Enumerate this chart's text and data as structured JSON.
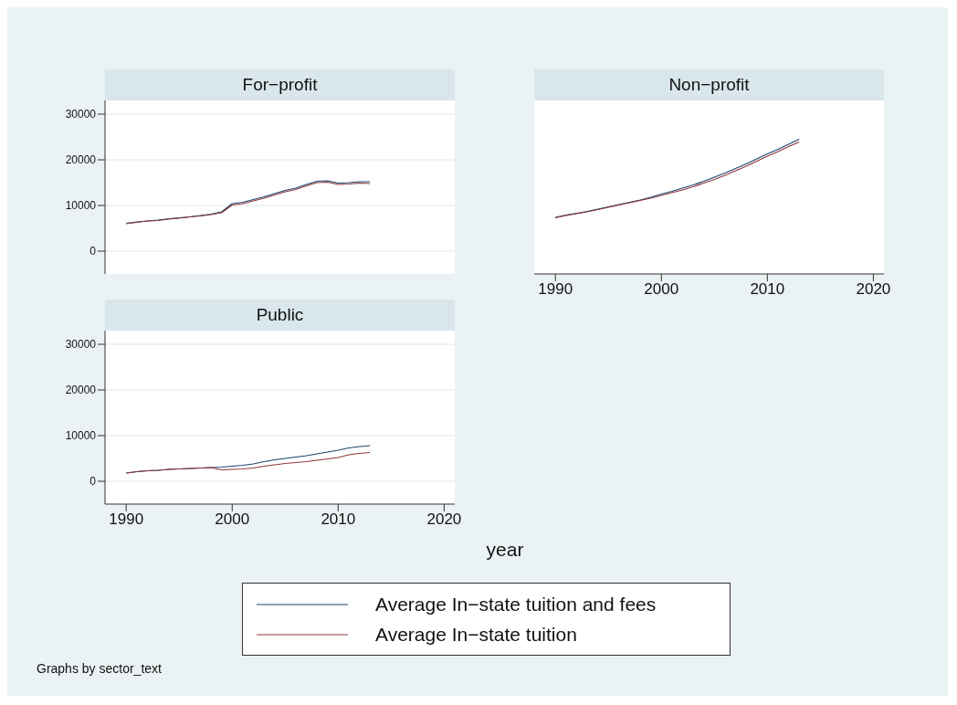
{
  "chart_data": [
    {
      "type": "line",
      "title": "For−profit",
      "x": [
        1990,
        1991,
        1992,
        1993,
        1994,
        1995,
        1996,
        1997,
        1998,
        1999,
        2000,
        2001,
        2002,
        2003,
        2004,
        2005,
        2006,
        2007,
        2008,
        2009,
        2010,
        2011,
        2012,
        2013
      ],
      "xlim": [
        1988,
        2021
      ],
      "xticks": [
        1990,
        2000,
        2010,
        2020
      ],
      "ylim": [
        -5000,
        33000
      ],
      "yticks": [
        0,
        10000,
        20000,
        30000
      ],
      "grid": "y",
      "tick_labels": "y",
      "legend": "bottom",
      "series": [
        {
          "name": "Average In−state tuition and fees",
          "color": "#1a476f",
          "values": [
            6100,
            6400,
            6600,
            6800,
            7100,
            7300,
            7500,
            7800,
            8100,
            8600,
            10400,
            10700,
            11300,
            11900,
            12600,
            13300,
            13800,
            14600,
            15300,
            15400,
            14900,
            15000,
            15200,
            15200
          ]
        },
        {
          "name": "Average In−state tuition",
          "color": "#90353b",
          "values": [
            6000,
            6300,
            6600,
            6700,
            7000,
            7200,
            7500,
            7700,
            8000,
            8400,
            10100,
            10400,
            11000,
            11600,
            12300,
            13000,
            13500,
            14300,
            15000,
            15100,
            14600,
            14700,
            14900,
            14800
          ]
        }
      ]
    },
    {
      "type": "line",
      "title": "Non−profit",
      "x": [
        1990,
        1991,
        1992,
        1993,
        1994,
        1995,
        1996,
        1997,
        1998,
        1999,
        2000,
        2001,
        2002,
        2003,
        2004,
        2005,
        2006,
        2007,
        2008,
        2009,
        2010,
        2011,
        2012,
        2013
      ],
      "xlim": [
        1988,
        2021
      ],
      "xticks": [
        1990,
        2000,
        2010,
        2020
      ],
      "ylim": [
        -5000,
        33000
      ],
      "yticks": [
        0,
        10000,
        20000,
        30000
      ],
      "grid": "y",
      "tick_labels": "x",
      "legend": "bottom",
      "series": [
        {
          "name": "Average In−state tuition and fees",
          "color": "#1a476f",
          "values": [
            7400,
            7900,
            8300,
            8700,
            9200,
            9700,
            10200,
            10700,
            11200,
            11800,
            12500,
            13100,
            13800,
            14500,
            15300,
            16200,
            17100,
            18100,
            19100,
            20200,
            21300,
            22300,
            23400,
            24500
          ]
        },
        {
          "name": "Average In−state tuition",
          "color": "#90353b",
          "values": [
            7300,
            7800,
            8200,
            8600,
            9100,
            9600,
            10100,
            10600,
            11100,
            11600,
            12200,
            12800,
            13400,
            14100,
            14900,
            15700,
            16600,
            17600,
            18600,
            19700,
            20800,
            21800,
            22900,
            23900
          ]
        }
      ]
    },
    {
      "type": "line",
      "title": "Public",
      "x": [
        1990,
        1991,
        1992,
        1993,
        1994,
        1995,
        1996,
        1997,
        1998,
        1999,
        2000,
        2001,
        2002,
        2003,
        2004,
        2005,
        2006,
        2007,
        2008,
        2009,
        2010,
        2011,
        2012,
        2013
      ],
      "xlim": [
        1988,
        2021
      ],
      "xticks": [
        1990,
        2000,
        2010,
        2020
      ],
      "ylim": [
        -5000,
        33000
      ],
      "yticks": [
        0,
        10000,
        20000,
        30000
      ],
      "grid": "y",
      "xlabel": "year",
      "legend": "bottom",
      "annotations": [
        "Graphs by sector_text"
      ],
      "series": [
        {
          "name": "Average In−state tuition and fees",
          "color": "#1a476f",
          "values": [
            1800,
            2100,
            2300,
            2400,
            2600,
            2700,
            2800,
            2900,
            3000,
            3100,
            3300,
            3500,
            3800,
            4300,
            4700,
            5000,
            5300,
            5600,
            6000,
            6400,
            6800,
            7300,
            7600,
            7800
          ]
        },
        {
          "name": "Average In−state tuition",
          "color": "#90353b",
          "values": [
            1800,
            2100,
            2300,
            2400,
            2600,
            2700,
            2800,
            2900,
            3000,
            2500,
            2600,
            2700,
            2900,
            3300,
            3600,
            3900,
            4100,
            4300,
            4600,
            4900,
            5200,
            5800,
            6100,
            6300
          ]
        }
      ]
    }
  ]
}
